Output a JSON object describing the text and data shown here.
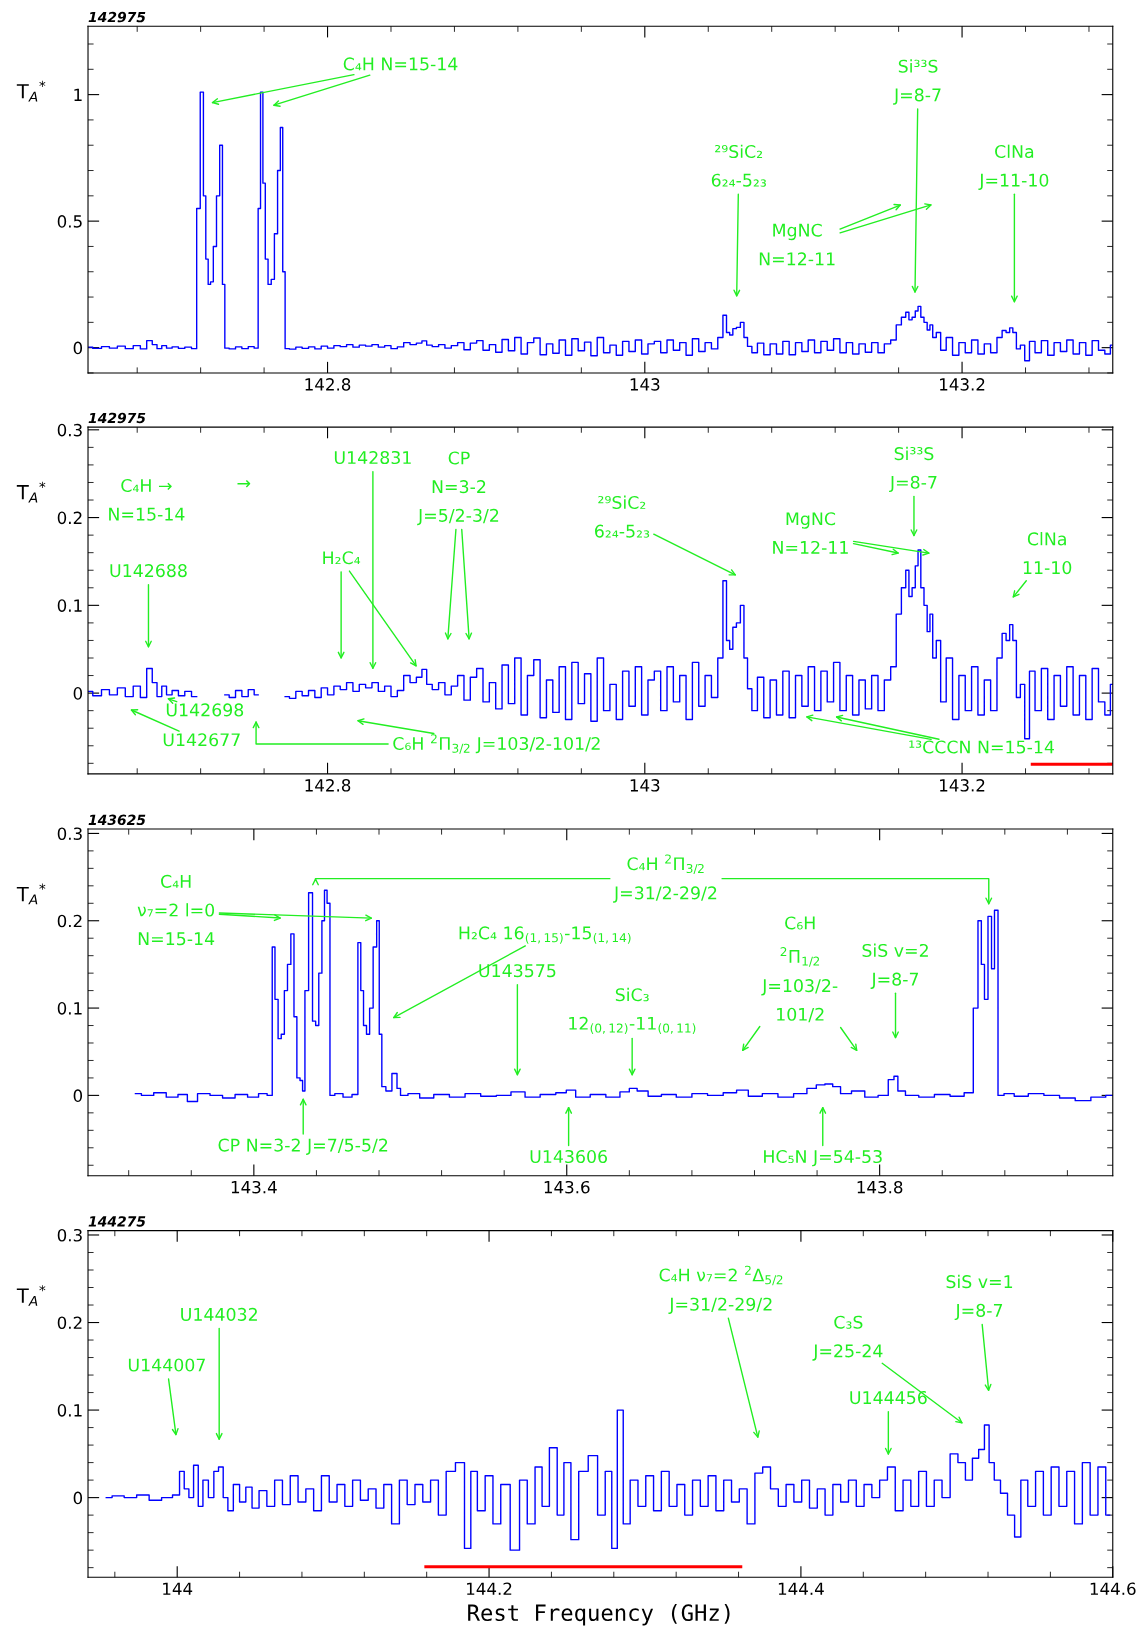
{
  "chart_data": [
    {
      "type": "step",
      "title": "142975",
      "ylabel": "T$_{A}$$^{*}$",
      "xlim": [
        142.649,
        143.295
      ],
      "xticks": [
        142.8,
        143,
        143.2
      ],
      "ylim": [
        -0.1,
        1.27
      ],
      "yticks": [
        0,
        0.5,
        1
      ],
      "grid": false,
      "series": [
        {
          "color": "#0000ff",
          "x": [
            142.649,
            142.655,
            142.66,
            142.665,
            142.67,
            142.675,
            142.68,
            142.684,
            142.688,
            142.691,
            142.694,
            142.697,
            142.7,
            142.704,
            142.708,
            142.712,
            142.7165,
            142.7185,
            142.721,
            142.7225,
            142.724,
            142.7255,
            142.727,
            142.729,
            142.731,
            142.733,
            142.7345,
            142.736,
            142.74,
            142.744,
            142.748,
            142.752,
            142.7555,
            142.757,
            142.7585,
            142.76,
            142.7615,
            142.7635,
            142.7655,
            142.7675,
            142.7695,
            142.771,
            142.7725,
            142.774,
            142.778,
            142.782,
            142.786,
            142.79,
            142.794,
            142.798,
            142.802,
            142.806,
            142.81,
            142.814,
            142.818,
            142.822,
            142.826,
            142.83,
            142.834,
            142.838,
            142.842,
            142.846,
            142.85,
            142.854,
            142.858,
            142.861,
            142.864,
            142.868,
            142.872,
            142.876,
            142.88,
            142.884,
            142.888,
            142.892,
            142.896,
            142.9,
            142.904,
            142.908,
            142.912,
            142.916,
            142.92,
            142.924,
            142.928,
            142.932,
            142.936,
            142.94,
            142.944,
            142.948,
            142.952,
            142.956,
            142.96,
            142.964,
            142.968,
            142.972,
            142.976,
            142.98,
            142.984,
            142.988,
            142.992,
            142.996,
            143.0,
            143.004,
            143.008,
            143.012,
            143.016,
            143.02,
            143.024,
            143.028,
            143.032,
            143.036,
            143.04,
            143.044,
            143.048,
            143.0505,
            143.0525,
            143.0545,
            143.0565,
            143.059,
            143.0615,
            143.0635,
            143.066,
            143.069,
            143.073,
            143.077,
            143.081,
            143.085,
            143.089,
            143.093,
            143.097,
            143.101,
            143.105,
            143.109,
            143.113,
            143.117,
            143.121,
            143.125,
            143.129,
            143.133,
            143.137,
            143.141,
            143.145,
            143.149,
            143.153,
            143.157,
            143.16,
            143.1635,
            143.1655,
            143.1675,
            143.1695,
            143.1715,
            143.173,
            143.175,
            143.177,
            143.179,
            143.1805,
            143.1825,
            143.185,
            143.188,
            143.192,
            143.196,
            143.2,
            143.204,
            143.208,
            143.212,
            143.216,
            143.22,
            143.224,
            143.2265,
            143.229,
            143.231,
            143.233,
            143.2355,
            143.238,
            143.241,
            143.244,
            143.248,
            143.252,
            143.256,
            143.26,
            143.264,
            143.268,
            143.272,
            143.276,
            143.28,
            143.284,
            143.288,
            143.292,
            143.295
          ],
          "values": [
            0.002,
            -0.003,
            0.004,
            -0.002,
            0.006,
            -0.004,
            0.008,
            -0.005,
            0.028,
            0.012,
            -0.004,
            0.008,
            -0.002,
            0.003,
            -0.003,
            0.002,
            -0.004,
            0.55,
            1.01,
            0.6,
            0.35,
            0.25,
            0.26,
            0.4,
            0.6,
            0.8,
            0.25,
            -0.002,
            -0.005,
            0.003,
            -0.004,
            0.004,
            -0.002,
            0.55,
            1.01,
            0.65,
            0.35,
            0.25,
            0.27,
            0.45,
            0.7,
            0.87,
            0.3,
            -0.004,
            -0.006,
            0.002,
            -0.003,
            0.003,
            -0.005,
            0.006,
            -0.002,
            0.008,
            0.004,
            0.012,
            0.002,
            0.01,
            0.006,
            0.012,
            0.002,
            0.008,
            -0.004,
            0.003,
            0.02,
            0.012,
            0.018,
            0.027,
            0.01,
            0.004,
            0.012,
            -0.002,
            0.008,
            0.02,
            -0.008,
            0.018,
            0.028,
            -0.01,
            0.012,
            -0.018,
            0.032,
            -0.012,
            0.04,
            -0.025,
            0.02,
            0.038,
            -0.028,
            0.015,
            -0.022,
            0.03,
            -0.03,
            0.035,
            -0.012,
            0.022,
            -0.032,
            0.04,
            -0.02,
            0.01,
            -0.03,
            0.025,
            -0.015,
            0.03,
            -0.025,
            0.015,
            0.025,
            -0.02,
            0.03,
            -0.01,
            0.02,
            -0.03,
            0.035,
            -0.015,
            0.02,
            -0.005,
            0.04,
            0.128,
            0.06,
            0.05,
            0.075,
            0.08,
            0.1,
            0.04,
            0.005,
            -0.02,
            0.018,
            -0.028,
            0.015,
            -0.025,
            0.025,
            -0.028,
            0.02,
            -0.015,
            0.03,
            -0.02,
            0.025,
            -0.01,
            0.035,
            -0.02,
            0.02,
            -0.025,
            0.015,
            -0.018,
            0.02,
            -0.02,
            0.015,
            0.03,
            0.09,
            0.12,
            0.14,
            0.11,
            0.12,
            0.145,
            0.163,
            0.12,
            0.1,
            0.07,
            0.09,
            0.04,
            0.06,
            -0.01,
            0.04,
            -0.03,
            0.02,
            -0.02,
            0.03,
            -0.025,
            0.015,
            -0.02,
            0.04,
            0.068,
            0.06,
            0.078,
            0.06,
            -0.005,
            0.01,
            -0.052,
            0.025,
            -0.02,
            0.028,
            -0.03,
            0.02,
            -0.015,
            0.03,
            -0.025,
            0.02,
            -0.03,
            0.028,
            -0.01,
            -0.025,
            0.01
          ]
        }
      ],
      "annotations": [
        "C₄H N=15-14",
        "²⁹SiC₂\n6₂₄-5₂₃",
        "MgNC\nN=12-11",
        "Si³³S\nJ=8-7",
        "ClNa\nJ=11-10"
      ]
    },
    {
      "type": "step",
      "title": "142975",
      "ylabel": "T$_{A}$$^{*}$",
      "xlim": [
        142.649,
        143.295
      ],
      "xticks": [
        142.8,
        143,
        143.2
      ],
      "ylim": [
        -0.092,
        0.303
      ],
      "yticks": [
        0,
        0.1,
        0.2,
        0.3
      ],
      "grid": false,
      "series": [
        {
          "color": "#0000ff",
          "x": [
            142.649,
            142.655,
            142.66,
            142.665,
            142.67,
            142.675,
            142.68,
            142.684,
            142.688,
            142.691,
            142.694,
            142.697,
            142.7,
            142.704,
            142.708,
            142.712,
            142.7165,
            142.7185,
            142.721,
            142.7225,
            142.724,
            142.7255,
            142.727,
            142.729,
            142.731,
            142.733,
            142.7345,
            142.736,
            142.74,
            142.744,
            142.748,
            142.752,
            142.7555,
            142.757,
            142.7585,
            142.76,
            142.7615,
            142.7635,
            142.7655,
            142.7675,
            142.7695,
            142.771,
            142.7725,
            142.774,
            142.778,
            142.782,
            142.786,
            142.79,
            142.794,
            142.798,
            142.802,
            142.806,
            142.81,
            142.814,
            142.818,
            142.822,
            142.826,
            142.83,
            142.834,
            142.838,
            142.842,
            142.846,
            142.85,
            142.854,
            142.858,
            142.861,
            142.864,
            142.868,
            142.872,
            142.876,
            142.88,
            142.884,
            142.888,
            142.892,
            142.896,
            142.9,
            142.904,
            142.908,
            142.912,
            142.916,
            142.92,
            142.924,
            142.928,
            142.932,
            142.936,
            142.94,
            142.944,
            142.948,
            142.952,
            142.956,
            142.96,
            142.964,
            142.968,
            142.972,
            142.976,
            142.98,
            142.984,
            142.988,
            142.992,
            142.996,
            143.0,
            143.004,
            143.008,
            143.012,
            143.016,
            143.02,
            143.024,
            143.028,
            143.032,
            143.036,
            143.04,
            143.044,
            143.048,
            143.0505,
            143.0525,
            143.0545,
            143.0565,
            143.059,
            143.0615,
            143.0635,
            143.066,
            143.069,
            143.073,
            143.077,
            143.081,
            143.085,
            143.089,
            143.093,
            143.097,
            143.101,
            143.105,
            143.109,
            143.113,
            143.117,
            143.121,
            143.125,
            143.129,
            143.133,
            143.137,
            143.141,
            143.145,
            143.149,
            143.153,
            143.157,
            143.16,
            143.1635,
            143.1655,
            143.1675,
            143.1695,
            143.1715,
            143.173,
            143.175,
            143.177,
            143.179,
            143.1805,
            143.1825,
            143.185,
            143.188,
            143.192,
            143.196,
            143.2,
            143.204,
            143.208,
            143.212,
            143.216,
            143.22,
            143.224,
            143.2265,
            143.229,
            143.231,
            143.233,
            143.2355,
            143.238,
            143.241,
            143.244,
            143.248,
            143.252,
            143.256,
            143.26,
            143.264,
            143.268,
            143.272,
            143.276,
            143.28,
            143.284,
            143.288,
            143.292,
            143.295
          ],
          "values": [
            0.002,
            -0.003,
            0.004,
            -0.002,
            0.006,
            -0.004,
            0.008,
            -0.005,
            0.028,
            0.012,
            -0.004,
            0.008,
            -0.002,
            0.003,
            -0.003,
            0.002,
            -0.004,
            null,
            null,
            null,
            null,
            null,
            null,
            null,
            null,
            null,
            null,
            -0.002,
            -0.005,
            0.003,
            -0.004,
            0.004,
            -0.002,
            null,
            null,
            null,
            null,
            null,
            null,
            null,
            null,
            null,
            null,
            -0.004,
            -0.006,
            0.002,
            -0.003,
            0.003,
            -0.005,
            0.006,
            -0.002,
            0.008,
            0.004,
            0.012,
            0.002,
            0.01,
            0.006,
            0.012,
            0.002,
            0.008,
            -0.004,
            0.003,
            0.02,
            0.012,
            0.018,
            0.027,
            0.01,
            0.004,
            0.012,
            -0.002,
            0.008,
            0.02,
            -0.008,
            0.018,
            0.028,
            -0.01,
            0.012,
            -0.018,
            0.032,
            -0.012,
            0.04,
            -0.025,
            0.02,
            0.038,
            -0.028,
            0.015,
            -0.022,
            0.03,
            -0.03,
            0.035,
            -0.012,
            0.022,
            -0.032,
            0.04,
            -0.02,
            0.01,
            -0.03,
            0.025,
            -0.015,
            0.03,
            -0.025,
            0.015,
            0.025,
            -0.02,
            0.03,
            -0.01,
            0.02,
            -0.03,
            0.035,
            -0.015,
            0.02,
            -0.005,
            0.04,
            0.128,
            0.06,
            0.05,
            0.075,
            0.08,
            0.1,
            0.04,
            0.005,
            -0.02,
            0.018,
            -0.028,
            0.015,
            -0.025,
            0.025,
            -0.028,
            0.02,
            -0.015,
            0.03,
            -0.02,
            0.025,
            -0.01,
            0.035,
            -0.02,
            0.02,
            -0.025,
            0.015,
            -0.018,
            0.02,
            -0.02,
            0.015,
            0.03,
            0.09,
            0.12,
            0.14,
            0.11,
            0.12,
            0.145,
            0.163,
            0.12,
            0.1,
            0.07,
            0.09,
            0.04,
            0.06,
            -0.01,
            0.04,
            -0.03,
            0.02,
            -0.02,
            0.03,
            -0.025,
            0.015,
            -0.02,
            0.04,
            0.068,
            0.06,
            0.078,
            0.06,
            -0.005,
            0.01,
            -0.052,
            0.025,
            -0.02,
            0.028,
            -0.03,
            0.02,
            -0.015,
            0.03,
            -0.025,
            0.02,
            -0.03,
            0.028,
            -0.01,
            -0.025,
            0.01
          ]
        },
        {
          "type": "line",
          "color": "#ff0000",
          "x": [
            143.2433,
            143.295
          ],
          "values": [
            -0.081,
            -0.081
          ]
        }
      ],
      "annotations": [
        "C₄H →\nN=15-14",
        "→",
        "U142688",
        "U142698",
        "U142677",
        "U142831",
        "H₂C₄",
        "CP\nN=3-2\nJ=5/2-3/2",
        "C₆H $^{2}$Π$_{3/2}$ J=103/2-101/2",
        "²⁹SiC₂\n6₂₄-5₂₃",
        "MgNC\nN=12-11",
        "Si³³S\nJ=8-7",
        "ClNa\n11-10",
        "¹³CCCN N=15-14"
      ]
    },
    {
      "type": "step",
      "title": "143625",
      "ylabel": "T$_{A}$$^{*}$",
      "xlim": [
        143.294,
        143.949
      ],
      "xticks": [
        143.4,
        143.6,
        143.8
      ],
      "ylim": [
        -0.092,
        0.305
      ],
      "yticks": [
        0,
        0.1,
        0.2,
        0.3
      ],
      "grid": false,
      "series": [
        {
          "color": "#0000ff",
          "x": [
            143.3243,
            143.332,
            143.34,
            143.348,
            143.355,
            143.36,
            143.368,
            143.376,
            143.384,
            143.392,
            143.4,
            143.406,
            143.411,
            143.4125,
            143.4145,
            143.4165,
            143.4185,
            143.4205,
            143.4225,
            143.4248,
            143.4265,
            143.4285,
            143.4305,
            143.4318,
            143.4335,
            143.4365,
            143.4385,
            143.4405,
            143.4425,
            143.4445,
            143.4458,
            143.4478,
            143.4495,
            143.454,
            143.46,
            143.4655,
            143.4675,
            143.4692,
            143.471,
            143.473,
            143.475,
            143.4775,
            143.4795,
            143.4808,
            143.4828,
            143.486,
            143.4905,
            143.4925,
            143.495,
            143.502,
            143.51,
            143.52,
            143.53,
            143.54,
            143.55,
            143.56,
            143.5687,
            143.578,
            143.588,
            143.598,
            143.6014,
            143.61,
            143.62,
            143.63,
            143.638,
            143.642,
            143.648,
            143.656,
            143.665,
            143.675,
            143.685,
            143.695,
            143.705,
            143.7121,
            143.72,
            143.73,
            143.74,
            143.75,
            143.757,
            143.762,
            143.768,
            143.772,
            143.778,
            143.786,
            143.795,
            143.803,
            143.808,
            143.8103,
            143.813,
            143.82,
            143.83,
            143.84,
            143.85,
            143.858,
            143.8617,
            143.864,
            143.866,
            143.868,
            143.8705,
            143.8725,
            143.8743,
            143.877,
            143.882,
            143.89,
            143.9,
            143.91,
            143.92,
            143.93,
            143.94,
            143.949
          ],
          "values": [
            0.002,
            0.0,
            0.003,
            -0.002,
            0.001,
            -0.007,
            0.002,
            0.0,
            -0.003,
            0.001,
            -0.002,
            0.002,
            0.0,
            0.17,
            0.11,
            0.065,
            0.07,
            0.12,
            0.15,
            0.185,
            0.09,
            0.02,
            0.017,
            0.005,
            0.12,
            0.232,
            0.085,
            0.08,
            0.14,
            0.2,
            0.235,
            0.22,
            0.0,
            0.002,
            -0.002,
            0.001,
            0.175,
            0.12,
            0.08,
            0.07,
            0.1,
            0.17,
            0.2,
            0.07,
            0.01,
            0.005,
            0.025,
            0.008,
            0.0,
            0.002,
            -0.003,
            0.001,
            -0.002,
            0.002,
            -0.001,
            0.0,
            0.004,
            -0.002,
            0.001,
            0.003,
            0.006,
            -0.002,
            0.001,
            -0.002,
            0.004,
            0.008,
            0.005,
            -0.001,
            0.001,
            -0.002,
            0.002,
            0.0,
            0.003,
            0.006,
            -0.001,
            0.002,
            -0.002,
            0.002,
            0.008,
            0.012,
            0.013,
            0.01,
            0.002,
            0.005,
            -0.002,
            0.0,
            0.018,
            0.022,
            0.005,
            0.0,
            -0.002,
            0.001,
            -0.001,
            0.003,
            0.1,
            0.2,
            0.15,
            0.11,
            0.205,
            0.145,
            0.212,
            0.0,
            0.002,
            -0.001,
            0.002,
            0.0,
            -0.003,
            -0.006,
            -0.002,
            0.0
          ]
        }
      ],
      "annotations": [
        "C₄H\nν₇=2 l=0\nN=15-14",
        "C₄H $^{2}$Π$_{3/2}$\nJ=31/2-29/2",
        "H₂C₄ 16$_{(1,15)}$-15$_{(1,14)}$",
        "U143575",
        "SiC₃\n12$_{(0,12)}$-11$_{(0,11)}$",
        "C₆H\n$^{2}$Π$_{1/2}$\nJ=103/2-\n101/2",
        "SiS v=2\nJ=8-7",
        "CP N=3-2 J=7/5-5/2",
        "U143606",
        "HC₅N J=54-53"
      ]
    },
    {
      "type": "step",
      "title": "144275",
      "ylabel": "T$_{A}$$^{*}$",
      "xlabel": "Rest Frequency (GHz)",
      "xlim": [
        143.9428,
        144.6
      ],
      "xticks": [
        144,
        144.2,
        144.4,
        144.6
      ],
      "ylim": [
        -0.091,
        0.305
      ],
      "yticks": [
        0,
        0.1,
        0.2,
        0.3
      ],
      "grid": false,
      "series": [
        {
          "color": "#0000ff",
          "x": [
            143.9545,
            143.962,
            143.97,
            143.978,
            143.986,
            143.994,
            144.0,
            144.003,
            144.006,
            144.009,
            144.012,
            144.015,
            144.018,
            144.022,
            144.025,
            144.028,
            144.031,
            144.034,
            144.038,
            144.042,
            144.046,
            144.05,
            144.055,
            144.06,
            144.065,
            144.07,
            144.075,
            144.08,
            144.085,
            144.09,
            144.095,
            144.1,
            144.105,
            144.11,
            144.115,
            144.12,
            144.125,
            144.13,
            144.135,
            144.14,
            144.145,
            144.15,
            144.155,
            144.16,
            144.165,
            144.17,
            144.175,
            144.1819,
            144.1866,
            144.19,
            144.195,
            144.2,
            144.205,
            144.21,
            144.2171,
            144.222,
            144.227,
            144.232,
            144.236,
            144.2414,
            144.246,
            144.25,
            144.255,
            144.26,
            144.2672,
            144.272,
            144.277,
            144.2804,
            144.2841,
            144.288,
            144.293,
            144.298,
            144.303,
            144.308,
            144.313,
            144.318,
            144.323,
            144.328,
            144.333,
            144.338,
            144.343,
            144.348,
            144.353,
            144.358,
            144.363,
            144.368,
            144.373,
            144.378,
            144.383,
            144.388,
            144.393,
            144.398,
            144.403,
            144.408,
            144.413,
            144.418,
            144.423,
            144.428,
            144.433,
            144.438,
            144.443,
            144.448,
            144.453,
            144.458,
            144.463,
            144.468,
            144.473,
            144.478,
            144.483,
            144.488,
            144.493,
            144.4984,
            144.503,
            144.508,
            144.512,
            144.516,
            144.5194,
            144.522,
            144.526,
            144.53,
            144.535,
            144.5391,
            144.543,
            144.548,
            144.553,
            144.558,
            144.563,
            144.568,
            144.573,
            144.578,
            144.583,
            144.588,
            144.593,
            144.598
          ],
          "values": [
            0.0,
            0.002,
            0.0,
            0.003,
            -0.003,
            0.0,
            0.003,
            0.03,
            0.01,
            0.0,
            0.037,
            -0.01,
            0.02,
            0.0,
            0.03,
            0.035,
            0.0,
            -0.015,
            0.015,
            -0.005,
            0.012,
            -0.012,
            0.008,
            -0.01,
            0.02,
            -0.008,
            0.025,
            -0.005,
            0.01,
            -0.015,
            0.025,
            -0.005,
            0.015,
            -0.01,
            0.02,
            -0.003,
            0.01,
            -0.012,
            0.015,
            -0.03,
            0.02,
            -0.008,
            0.015,
            -0.005,
            0.02,
            -0.02,
            0.03,
            0.04,
            -0.058,
            0.03,
            -0.015,
            0.025,
            -0.03,
            0.015,
            -0.06,
            0.02,
            -0.03,
            0.035,
            -0.01,
            0.057,
            -0.02,
            0.04,
            -0.048,
            0.03,
            0.048,
            -0.02,
            0.03,
            -0.058,
            0.1,
            -0.03,
            0.02,
            -0.01,
            0.025,
            -0.015,
            0.03,
            -0.01,
            0.015,
            -0.02,
            0.02,
            -0.01,
            0.025,
            -0.015,
            0.02,
            -0.005,
            0.01,
            -0.03,
            0.028,
            0.035,
            0.01,
            -0.01,
            0.015,
            -0.005,
            0.02,
            -0.012,
            0.01,
            -0.02,
            0.015,
            -0.005,
            0.02,
            -0.01,
            0.015,
            0.0,
            0.02,
            0.035,
            -0.015,
            0.02,
            -0.01,
            0.03,
            -0.01,
            0.02,
            0.0,
            0.05,
            0.04,
            0.02,
            0.045,
            0.055,
            0.083,
            0.04,
            0.02,
            0.005,
            -0.02,
            -0.045,
            0.02,
            -0.01,
            0.03,
            -0.02,
            0.035,
            -0.01,
            0.03,
            -0.03,
            0.04,
            -0.02,
            0.035,
            -0.02
          ]
        },
        {
          "type": "line",
          "color": "#ff0000",
          "x": [
            144.1585,
            144.3624
          ],
          "values": [
            -0.079,
            -0.079
          ]
        }
      ],
      "annotations": [
        "U144007",
        "U144032",
        "C₄H ν₇=2 $^{2}$Δ$_{5/2}$\nJ=31/2-29/2",
        "C₃S\nJ=25-24",
        "SiS v=1\nJ=8-7",
        "U144456"
      ]
    }
  ]
}
